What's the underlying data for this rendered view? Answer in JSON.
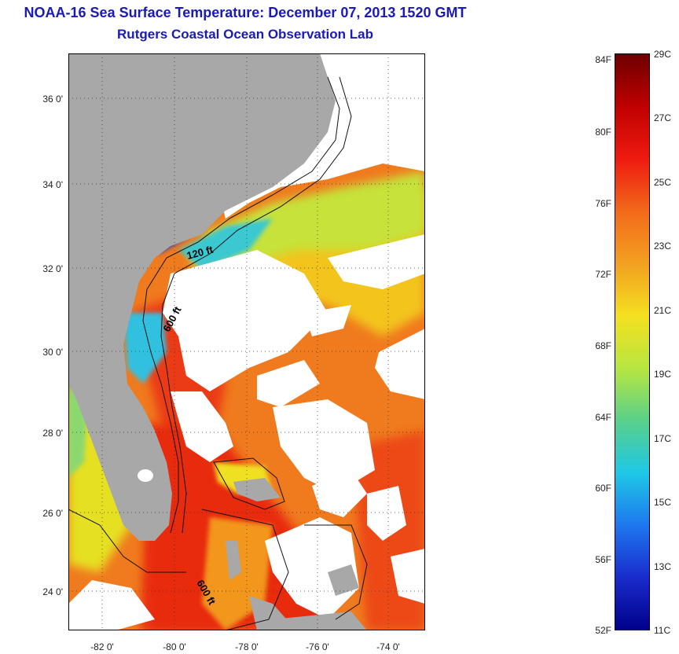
{
  "title_line1": "NOAA-16 Sea Surface Temperature:  December 07, 2013 1520 GMT",
  "title_line2": "Rutgers Coastal Ocean Observation Lab",
  "y_ticks": [
    "36 0'",
    "34 0'",
    "32 0'",
    "30 0'",
    "28 0'",
    "26 0'",
    "24 0'"
  ],
  "x_ticks": [
    "-82 0'",
    "-80 0'",
    "-78 0'",
    "-76 0'",
    "-74 0'"
  ],
  "contour_labels": [
    "120 ft",
    "600 ft",
    "600 ft"
  ],
  "colorbar": {
    "fahrenheit": [
      "84F",
      "80F",
      "76F",
      "72F",
      "68F",
      "64F",
      "60F",
      "56F",
      "52F"
    ],
    "celsius": [
      "29C",
      "27C",
      "25C",
      "23C",
      "21C",
      "19C",
      "17C",
      "15C",
      "13C",
      "11C"
    ],
    "colors": [
      "#6e0000",
      "#c00000",
      "#ee1a10",
      "#f26a1a",
      "#f2a020",
      "#f4e020",
      "#b8e640",
      "#5ad08a",
      "#1ec8e6",
      "#1e78ee",
      "#1a2ccc",
      "#00008a"
    ]
  },
  "colors": {
    "land": "#a8a8a8",
    "cloud": "#ffffff",
    "title": "#1a1ab4"
  }
}
